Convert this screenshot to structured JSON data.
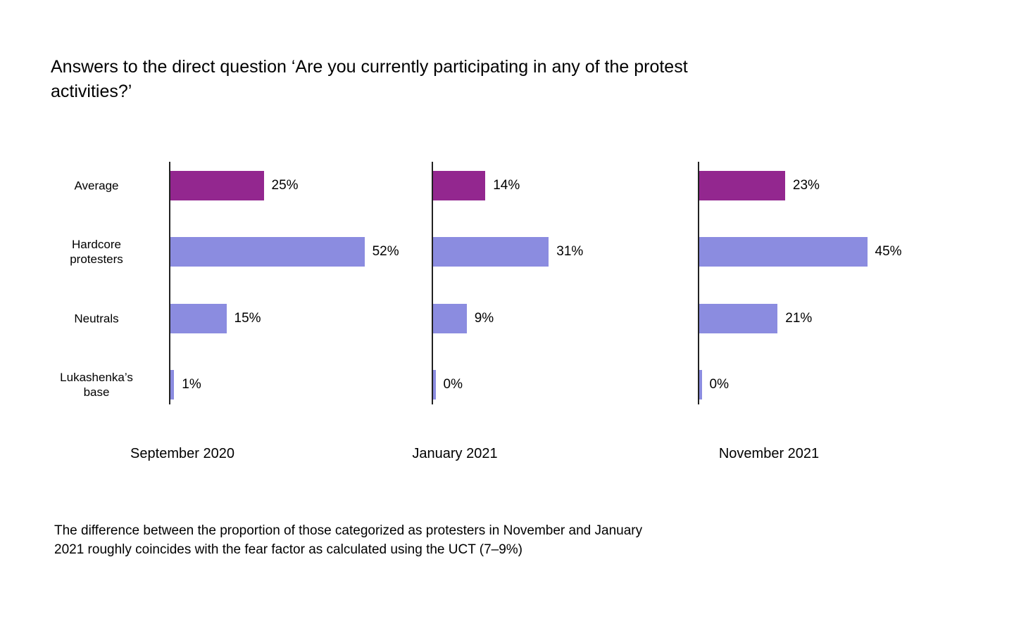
{
  "chart_data": {
    "type": "bar",
    "orientation": "horizontal",
    "title": "Answers to the direct question ‘Are you currently participating in any of the protest\nactivities?’",
    "categories": [
      "Average",
      "Hardcore\nprotesters",
      "Neutrals",
      "Lukashenka’s\nbase"
    ],
    "panels": [
      {
        "label": "September 2020",
        "values": [
          25,
          52,
          15,
          1
        ],
        "labels": [
          "25%",
          "52%",
          "15%",
          "1%"
        ]
      },
      {
        "label": "January 2021",
        "values": [
          14,
          31,
          9,
          0
        ],
        "labels": [
          "14%",
          "31%",
          "9%",
          "0%"
        ]
      },
      {
        "label": "November 2021",
        "values": [
          23,
          45,
          21,
          0
        ],
        "labels": [
          "23%",
          "45%",
          "21%",
          "0%"
        ]
      }
    ],
    "value_suffix": "%",
    "xlim": [
      0,
      65
    ],
    "grid": false,
    "legend": "none",
    "colors": {
      "average_bar": "#93278F",
      "group_bar": "#8B8CE0",
      "axis": "#212121",
      "text": "#000000",
      "background": "#FFFFFF"
    },
    "note": "The difference between the proportion of those categorized as protesters in November and January\n2021 roughly coincides with the fear factor as calculated using the UCT (7–9%)"
  }
}
